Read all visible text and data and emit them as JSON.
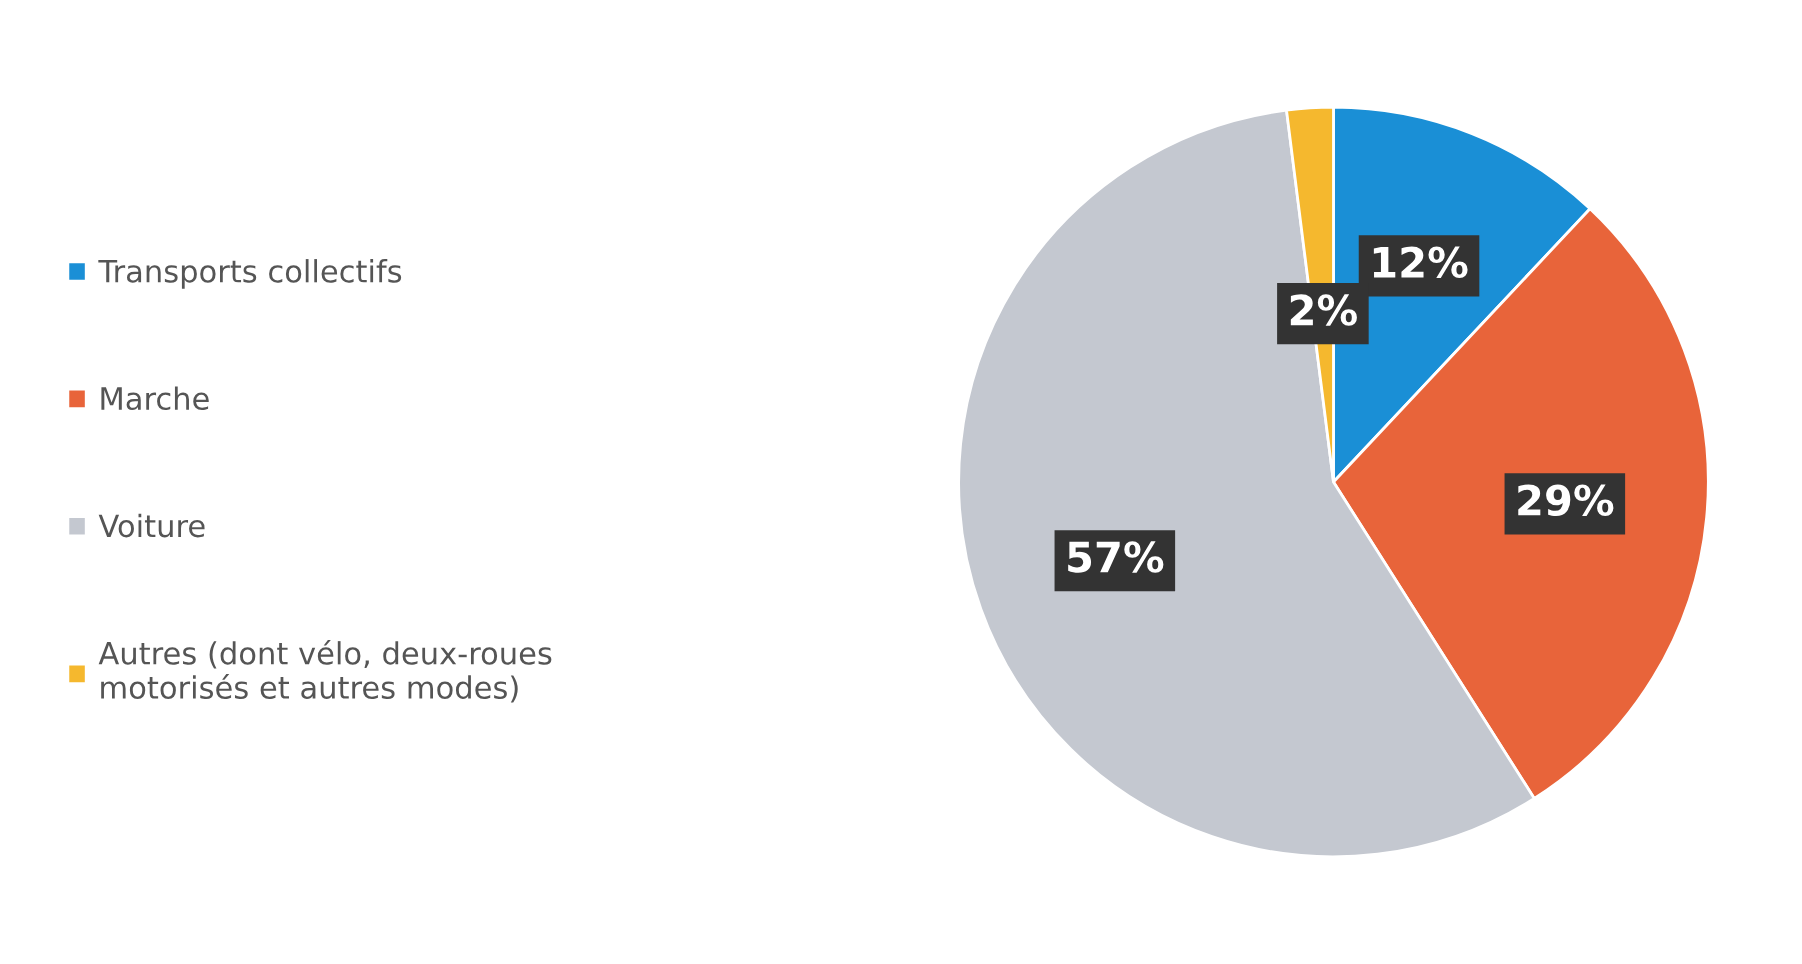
{
  "chart_data": {
    "type": "pie",
    "categories": [
      "Transports collectifs",
      "Marche",
      "Voiture",
      "Autres (dont vélo, deux-roues\nmotorisés et autres modes)"
    ],
    "values": [
      12,
      29,
      57,
      2
    ],
    "colors": [
      "#1a8fd6",
      "#e8643a",
      "#c4c8d0",
      "#f5b82e"
    ],
    "value_labels": [
      "12%",
      "29%",
      "57%",
      "2%"
    ],
    "legend": "left"
  }
}
